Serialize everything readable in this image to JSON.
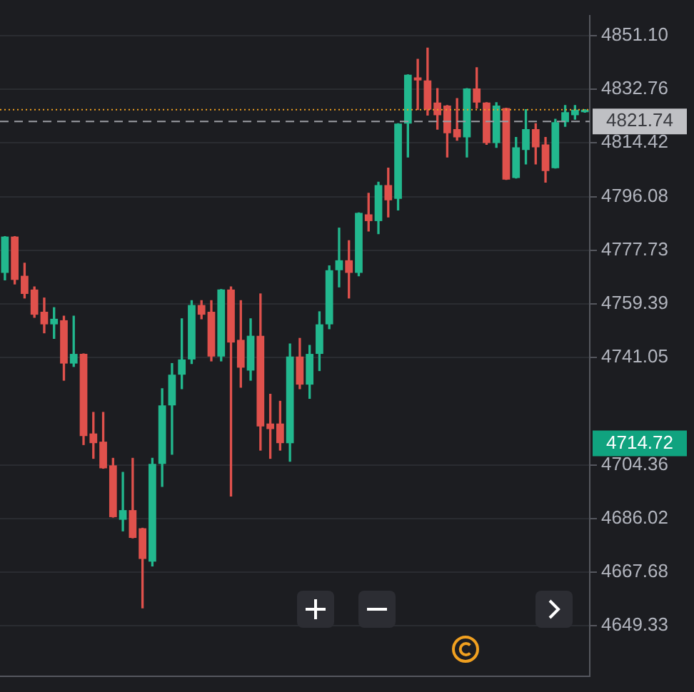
{
  "chart_data": {
    "type": "candlestick",
    "categories": [
      null,
      null,
      null,
      null,
      null,
      null,
      null,
      null,
      null,
      null,
      null,
      null,
      null,
      null,
      null,
      null,
      null,
      null,
      null,
      null,
      null,
      null,
      null,
      null,
      null,
      null,
      null,
      null,
      null,
      null,
      null,
      null,
      null,
      null,
      null,
      null,
      null,
      null,
      null,
      null,
      null,
      null,
      null,
      null,
      null,
      null,
      null,
      null,
      null,
      null,
      null,
      null,
      null,
      null,
      null,
      null,
      null,
      null,
      null,
      null
    ],
    "ohlc": [
      [
        4770.0,
        4782.4,
        4767.6,
        4782.4
      ],
      [
        4782.4,
        4782.4,
        4766.2,
        4767.6
      ],
      [
        4769.0,
        4773.3,
        4761.4,
        4762.8
      ],
      [
        4764.3,
        4765.2,
        4754.8,
        4755.7
      ],
      [
        4756.7,
        4761.4,
        4749.5,
        4752.4
      ],
      [
        4752.4,
        4758.1,
        4747.6,
        4754.3
      ],
      [
        4753.8,
        4755.2,
        4733.3,
        4739.0
      ],
      [
        4739.0,
        4755.2,
        4738.0,
        4742.3
      ],
      [
        4742.3,
        4742.3,
        4711.3,
        4714.2
      ],
      [
        4715.1,
        4722.3,
        4706.6,
        4711.8
      ],
      [
        4712.3,
        4722.3,
        4703.2,
        4703.2
      ],
      [
        4704.2,
        4706.6,
        4686.5,
        4686.5
      ],
      [
        4685.6,
        4701.8,
        4681.8,
        4688.9
      ],
      [
        4688.9,
        4706.6,
        4679.4,
        4679.4
      ],
      [
        4682.7,
        4682.7,
        4655.5,
        4672.2
      ],
      [
        4671.3,
        4706.6,
        4669.8,
        4704.7
      ],
      [
        4704.7,
        4730.4,
        4697.0,
        4724.7
      ],
      [
        4724.7,
        4739.0,
        4708.0,
        4735.2
      ],
      [
        4735.2,
        4754.3,
        4730.4,
        4740.4
      ],
      [
        4740.4,
        4760.5,
        4739.0,
        4759.0
      ],
      [
        4759.0,
        4760.5,
        4754.3,
        4755.7
      ],
      [
        4756.7,
        4760.5,
        4739.9,
        4741.4
      ],
      [
        4741.4,
        4764.3,
        4739.9,
        4764.3
      ],
      [
        4764.3,
        4765.2,
        4693.7,
        4746.2
      ],
      [
        4747.1,
        4760.5,
        4730.9,
        4737.6
      ],
      [
        4736.6,
        4754.3,
        4733.3,
        4748.5
      ],
      [
        4748.5,
        4762.8,
        4709.4,
        4717.5
      ],
      [
        4718.5,
        4728.5,
        4706.6,
        4716.6
      ],
      [
        4718.5,
        4726.1,
        4709.4,
        4711.8
      ],
      [
        4711.8,
        4745.7,
        4705.6,
        4741.4
      ],
      [
        4741.4,
        4747.6,
        4730.4,
        4731.8
      ],
      [
        4731.8,
        4745.2,
        4727.1,
        4742.3
      ],
      [
        4742.3,
        4756.7,
        4736.6,
        4752.4
      ],
      [
        4752.4,
        4772.4,
        4750.9,
        4770.9
      ],
      [
        4770.9,
        4785.3,
        4765.2,
        4774.3
      ],
      [
        4774.3,
        4781.0,
        4761.4,
        4770.0
      ],
      [
        4770.0,
        4790.5,
        4769.0,
        4790.5
      ],
      [
        4790.0,
        4797.2,
        4784.3,
        4787.7
      ],
      [
        4787.7,
        4801.0,
        4783.4,
        4800.0
      ],
      [
        4800.0,
        4805.8,
        4789.1,
        4794.8
      ],
      [
        4795.3,
        4821.0,
        4791.5,
        4821.0
      ],
      [
        4821.0,
        4837.7,
        4809.6,
        4837.7
      ],
      [
        4836.8,
        4843.0,
        4825.8,
        4835.8
      ],
      [
        4835.8,
        4846.8,
        4823.9,
        4825.8
      ],
      [
        4828.2,
        4833.0,
        4819.1,
        4823.9
      ],
      [
        4827.2,
        4827.2,
        4809.6,
        4817.7
      ],
      [
        4819.1,
        4829.6,
        4815.3,
        4816.3
      ],
      [
        4816.3,
        4833.0,
        4809.6,
        4833.0
      ],
      [
        4833.0,
        4840.1,
        4826.3,
        4828.2
      ],
      [
        4828.2,
        4828.2,
        4813.9,
        4814.4
      ],
      [
        4814.4,
        4828.2,
        4812.9,
        4827.2
      ],
      [
        4826.3,
        4826.3,
        4801.9,
        4801.9
      ],
      [
        4802.4,
        4816.3,
        4802.4,
        4812.9
      ],
      [
        4812.0,
        4825.8,
        4807.2,
        4819.1
      ],
      [
        4819.1,
        4821.0,
        4807.2,
        4812.9
      ],
      [
        4813.9,
        4816.3,
        4801.0,
        4804.8
      ],
      [
        4805.8,
        4822.5,
        4805.8,
        4821.5
      ],
      [
        4821.5,
        4827.2,
        4820.1,
        4824.9
      ],
      [
        4823.9,
        4827.2,
        4822.5,
        4825.8
      ],
      [
        4824.9,
        4825.8,
        4824.9,
        4825.8
      ]
    ],
    "colors": [
      "#22b88e",
      "#e0514c",
      "#e0514c",
      "#e0514c",
      "#e0514c",
      "#22b88e",
      "#e0514c",
      "#22b88e",
      "#e0514c",
      "#e0514c",
      "#e0514c",
      "#e0514c",
      "#22b88e",
      "#e0514c",
      "#e0514c",
      "#22b88e",
      "#22b88e",
      "#22b88e",
      "#22b88e",
      "#22b88e",
      "#e0514c",
      "#e0514c",
      "#22b88e",
      "#e0514c",
      "#e0514c",
      "#22b88e",
      "#e0514c",
      "#e0514c",
      "#e0514c",
      "#22b88e",
      "#e0514c",
      "#22b88e",
      "#22b88e",
      "#22b88e",
      "#22b88e",
      "#e0514c",
      "#22b88e",
      "#e0514c",
      "#22b88e",
      "#e0514c",
      "#22b88e",
      "#22b88e",
      "#e0514c",
      "#e0514c",
      "#e0514c",
      "#e0514c",
      "#e0514c",
      "#22b88e",
      "#e0514c",
      "#e0514c",
      "#22b88e",
      "#e0514c",
      "#22b88e",
      "#22b88e",
      "#e0514c",
      "#e0514c",
      "#22b88e",
      "#22b88e",
      "#22b88e",
      "#22b88e"
    ],
    "ylim": [
      4632,
      4858
    ],
    "yticks": [
      4649.33,
      4667.68,
      4686.02,
      4704.36,
      4741.05,
      4759.39,
      4777.73,
      4796.08,
      4814.42,
      4832.76,
      {
        "value": 4851.1,
        "label": "4851.10"
      }
    ],
    "grid": "y",
    "tick_labels": "y",
    "ref_lines": [
      {
        "axis": "y",
        "value": 4825.8,
        "color": "#f0a020",
        "line_style": "dotted"
      },
      {
        "axis": "y",
        "value": 4821.74,
        "label": "4821.74",
        "color": "#9a9ca3",
        "line_style": "dashed"
      }
    ],
    "annotations": [
      "4714.72"
    ]
  }
}
